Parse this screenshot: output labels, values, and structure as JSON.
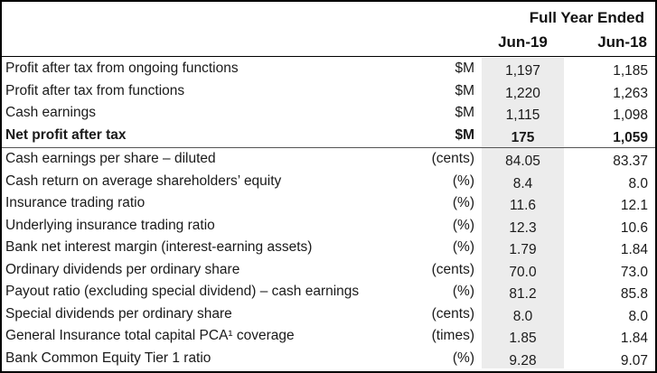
{
  "header": {
    "title": "Full Year Ended",
    "col1": "Jun-19",
    "col2": "Jun-18"
  },
  "group1": [
    {
      "label": "Profit after tax from ongoing functions",
      "unit": "$M",
      "jun19": "1,197",
      "jun18": "1,185",
      "bold": false
    },
    {
      "label": "Profit after tax from functions",
      "unit": "$M",
      "jun19": "1,220",
      "jun18": "1,263",
      "bold": false
    },
    {
      "label": "Cash earnings",
      "unit": "$M",
      "jun19": "1,115",
      "jun18": "1,098",
      "bold": false
    },
    {
      "label": "Net profit after tax",
      "unit": "$M",
      "jun19": "175",
      "jun18": "1,059",
      "bold": true
    }
  ],
  "group2": [
    {
      "label": "Cash earnings per share – diluted",
      "unit": "(cents)",
      "jun19": "84.05",
      "jun18": "83.37"
    },
    {
      "label": "Cash return on average shareholders’ equity",
      "unit": "(%)",
      "jun19": "8.4",
      "jun18": "8.0"
    },
    {
      "label": "Insurance trading ratio",
      "unit": "(%)",
      "jun19": "11.6",
      "jun18": "12.1"
    },
    {
      "label": "Underlying insurance trading ratio",
      "unit": "(%)",
      "jun19": "12.3",
      "jun18": "10.6"
    },
    {
      "label": "Bank net interest margin (interest-earning assets)",
      "unit": "(%)",
      "jun19": "1.79",
      "jun18": "1.84"
    },
    {
      "label": "Ordinary dividends per ordinary share",
      "unit": "(cents)",
      "jun19": "70.0",
      "jun18": "73.0"
    },
    {
      "label": "Payout ratio (excluding special dividend) – cash earnings",
      "unit": "(%)",
      "jun19": "81.2",
      "jun18": "85.8"
    },
    {
      "label": "Special dividends per ordinary share",
      "unit": "(cents)",
      "jun19": "8.0",
      "jun18": "8.0"
    },
    {
      "label": "General Insurance total capital PCA¹ coverage",
      "unit": "(times)",
      "jun19": "1.85",
      "jun18": "1.84"
    },
    {
      "label": "Bank Common Equity Tier 1 ratio",
      "unit": "(%)",
      "jun19": "9.28",
      "jun18": "9.07"
    }
  ],
  "colors": {
    "highlight_column": "#ececec",
    "border": "#000000"
  }
}
